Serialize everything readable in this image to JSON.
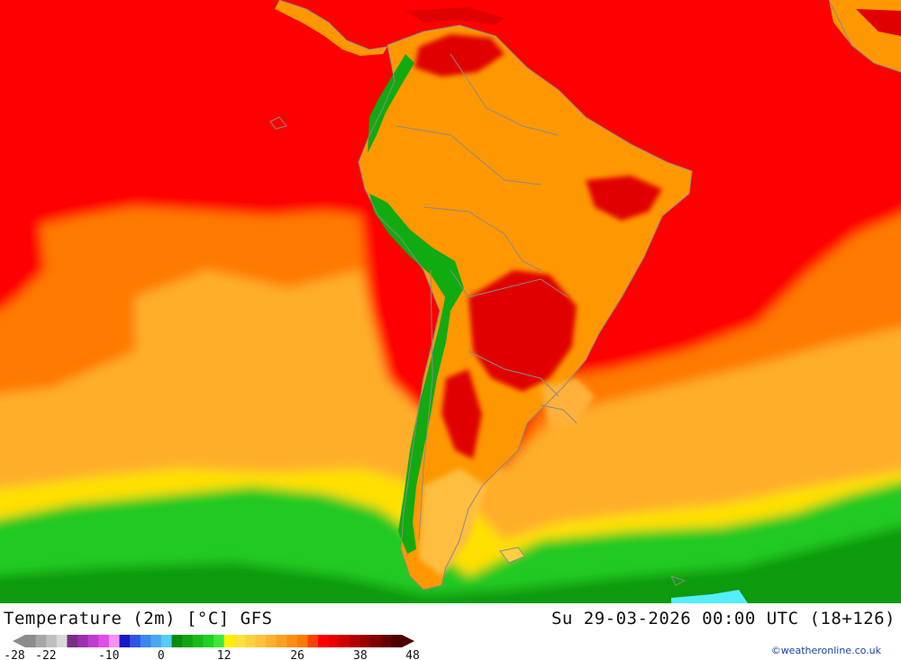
{
  "title": "Temperature (2m) [°C] GFS",
  "datetime": "Su 29-03-2026 00:00 UTC (18+126)",
  "credit": "©weatheronline.co.uk",
  "legend": {
    "tick_labels": [
      "-28",
      "-22",
      "-10",
      "0",
      "12",
      "26",
      "38",
      "48"
    ],
    "colors": [
      "#8c8c8c",
      "#a6a6a6",
      "#bfbfbf",
      "#d9d9d9",
      "#7b2c86",
      "#9b30ad",
      "#c13cd0",
      "#e04de8",
      "#f592f5",
      "#1818c8",
      "#2e55e6",
      "#3b87ee",
      "#46aaf0",
      "#55cdf5",
      "#0a8c0a",
      "#10a510",
      "#18bb18",
      "#22d022",
      "#3ce83c",
      "#fff000",
      "#ffe13c",
      "#ffd23c",
      "#ffc23c",
      "#ffb030",
      "#ff9f20",
      "#ff8c14",
      "#ff7a00",
      "#ff4000",
      "#ff0000",
      "#e60000",
      "#cc0000",
      "#b30000",
      "#990000",
      "#800000",
      "#660000",
      "#4d0000"
    ]
  },
  "colors": {
    "ocean_tropical": "#ff0000",
    "ocean_warm": "#ff7a00",
    "ocean_mild": "#ffae2a",
    "ocean_cool": "#ffe000",
    "ocean_cold": "#22c922",
    "land": "#ff9800",
    "land_hot": "#e00000",
    "andes": "#11aa11",
    "ice": "#55eeff",
    "border": "#8a8a8a"
  }
}
